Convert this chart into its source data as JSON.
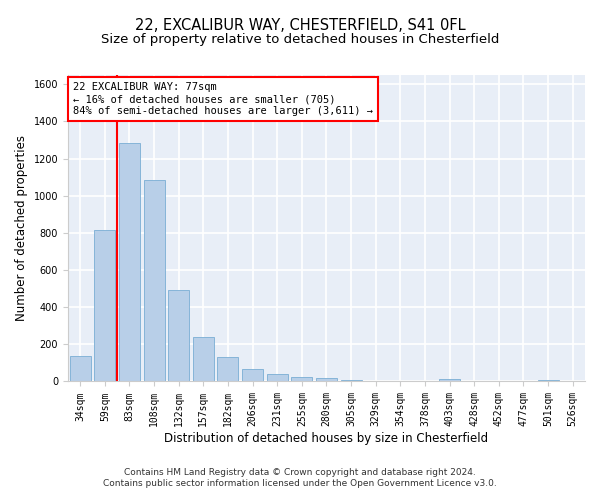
{
  "title_line1": "22, EXCALIBUR WAY, CHESTERFIELD, S41 0FL",
  "title_line2": "Size of property relative to detached houses in Chesterfield",
  "xlabel": "Distribution of detached houses by size in Chesterfield",
  "ylabel": "Number of detached properties",
  "categories": [
    "34sqm",
    "59sqm",
    "83sqm",
    "108sqm",
    "132sqm",
    "157sqm",
    "182sqm",
    "206sqm",
    "231sqm",
    "255sqm",
    "280sqm",
    "305sqm",
    "329sqm",
    "354sqm",
    "378sqm",
    "403sqm",
    "428sqm",
    "452sqm",
    "477sqm",
    "501sqm",
    "526sqm"
  ],
  "values": [
    137,
    815,
    1285,
    1085,
    490,
    237,
    130,
    68,
    42,
    26,
    18,
    8,
    4,
    2,
    1,
    12,
    1,
    0,
    0,
    10,
    0
  ],
  "bar_color": "#b8cfe8",
  "bar_edge_color": "#7aadd4",
  "vline_x_index": 1.5,
  "vline_color": "red",
  "annotation_text": "22 EXCALIBUR WAY: 77sqm\n← 16% of detached houses are smaller (705)\n84% of semi-detached houses are larger (3,611) →",
  "annotation_box_color": "white",
  "annotation_box_edge": "red",
  "ylim": [
    0,
    1650
  ],
  "yticks": [
    0,
    200,
    400,
    600,
    800,
    1000,
    1200,
    1400,
    1600
  ],
  "footer": "Contains HM Land Registry data © Crown copyright and database right 2024.\nContains public sector information licensed under the Open Government Licence v3.0.",
  "background_color": "#e8eef7",
  "grid_color": "white",
  "title_fontsize": 10.5,
  "subtitle_fontsize": 9.5,
  "axis_label_fontsize": 8.5,
  "tick_fontsize": 7,
  "footer_fontsize": 6.5,
  "annotation_fontsize": 7.5
}
